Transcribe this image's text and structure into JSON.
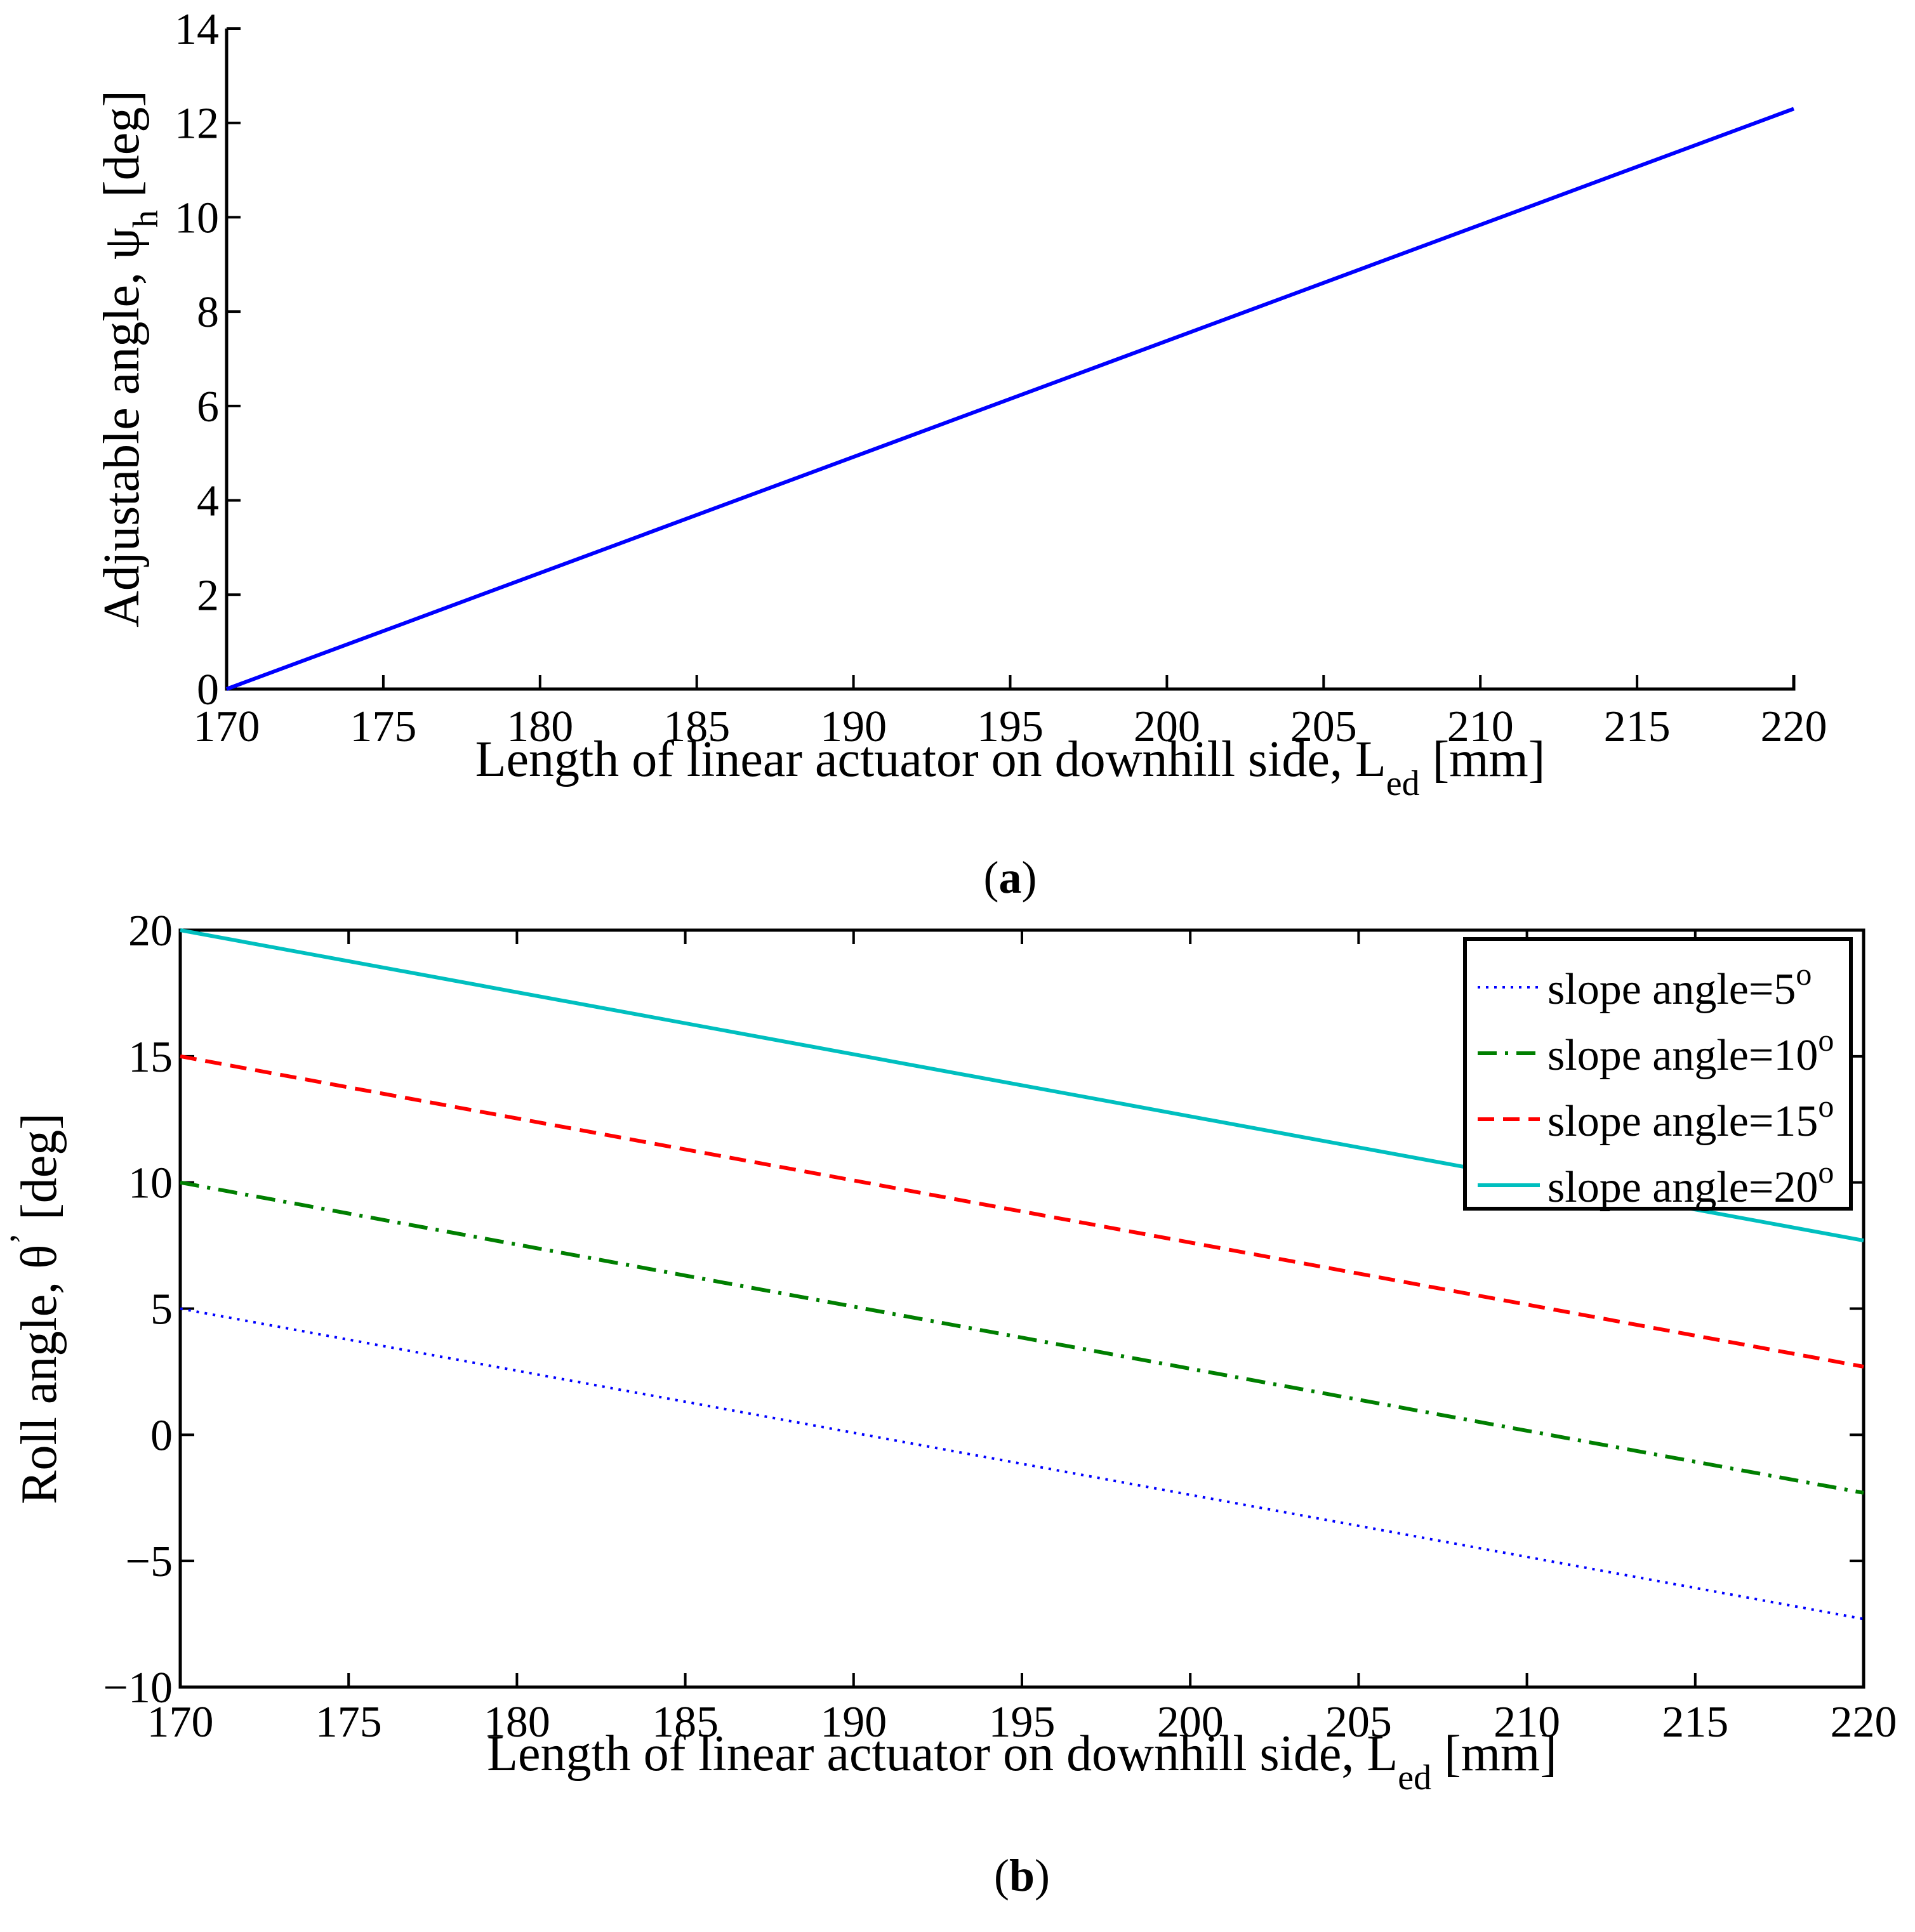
{
  "chart_data": [
    {
      "type": "line",
      "panel_label": "a",
      "title": "",
      "xlabel": {
        "main": "Length of linear actuator on downhill side, L",
        "sub": "ed",
        "tail": " [mm]"
      },
      "ylabel": {
        "main": "Adjustable angle, ψ",
        "sub": "h",
        "tail": " [deg]"
      },
      "xlim": [
        170,
        220
      ],
      "ylim": [
        0,
        14
      ],
      "xticks": [
        170,
        175,
        180,
        185,
        190,
        195,
        200,
        205,
        210,
        215,
        220
      ],
      "yticks": [
        0,
        2,
        4,
        6,
        8,
        10,
        12,
        14
      ],
      "series": [
        {
          "name": "adjustable angle",
          "color": "#0000ff",
          "style": "solid",
          "x": [
            170,
            220
          ],
          "y": [
            0,
            12.3
          ]
        }
      ]
    },
    {
      "type": "line",
      "panel_label": "b",
      "title": "",
      "xlabel": {
        "main": "Length of linear actuator on downhill side, L",
        "sub": "ed",
        "tail": " [mm]"
      },
      "ylabel": {
        "main": "Roll angle,  θ",
        "sup": "ʼ",
        "tail": " [deg]"
      },
      "xlim": [
        170,
        220
      ],
      "ylim": [
        -10,
        20
      ],
      "xticks": [
        170,
        175,
        180,
        185,
        190,
        195,
        200,
        205,
        210,
        215,
        220
      ],
      "yticks": [
        -10,
        -5,
        0,
        5,
        10,
        15,
        20
      ],
      "legend_position": "top-right",
      "series": [
        {
          "name": "slope angle=5",
          "sup": "o",
          "color": "#0000ff",
          "style": "dotted",
          "x": [
            170,
            220
          ],
          "y": [
            5,
            -7.3
          ]
        },
        {
          "name": "slope angle=10",
          "sup": "o",
          "color": "#007f00",
          "style": "dashdot",
          "x": [
            170,
            220
          ],
          "y": [
            10,
            -2.3
          ]
        },
        {
          "name": "slope angle=15",
          "sup": "o",
          "color": "#ff0000",
          "style": "dashed",
          "x": [
            170,
            220
          ],
          "y": [
            15,
            2.7
          ]
        },
        {
          "name": "slope angle=20",
          "sup": "o",
          "color": "#00bfbf",
          "style": "solid",
          "x": [
            170,
            220
          ],
          "y": [
            20,
            7.7
          ]
        }
      ]
    }
  ]
}
